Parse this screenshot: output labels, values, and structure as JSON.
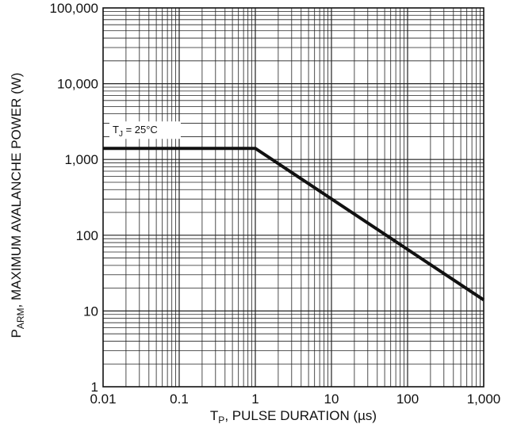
{
  "chart_data": {
    "type": "line",
    "xscale": "log",
    "yscale": "log",
    "xlim": [
      0.01,
      1000
    ],
    "ylim": [
      1,
      100000
    ],
    "grid": true,
    "x_ticks": [
      "0.01",
      "0.1",
      "1",
      "10",
      "100",
      "1,000"
    ],
    "y_ticks": [
      "1",
      "10",
      "100",
      "1,000",
      "10,000",
      "100,000"
    ],
    "xlabel": {
      "main": "T",
      "sub": "P",
      "rest": ", PULSE DURATION (µs)"
    },
    "ylabel": {
      "main": "P",
      "sub": "ARM",
      "rest": ", MAXIMUM AVALANCHE POWER (W)"
    },
    "annotation": {
      "main": "T",
      "sub": "J",
      "rest": " = 25°C"
    },
    "series": [
      {
        "x": [
          0.01,
          1,
          1000
        ],
        "y": [
          1400,
          1400,
          14
        ]
      }
    ],
    "line_color": "#111111"
  }
}
